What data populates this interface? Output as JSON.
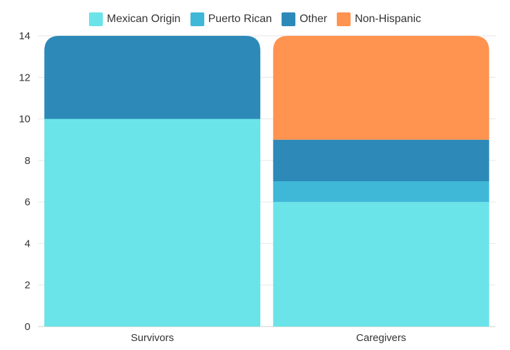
{
  "chart_data": {
    "type": "bar",
    "stacked": true,
    "categories": [
      "Survivors",
      "Caregivers"
    ],
    "series": [
      {
        "name": "Mexican Origin",
        "color": "#6ae4e9",
        "values": [
          10,
          6
        ]
      },
      {
        "name": "Puerto Rican",
        "color": "#3fb8d8",
        "values": [
          0,
          1
        ]
      },
      {
        "name": "Other",
        "color": "#2d8ab8",
        "values": [
          4,
          2
        ]
      },
      {
        "name": "Non-Hispanic",
        "color": "#ff9350",
        "values": [
          0,
          5
        ]
      }
    ],
    "title": "",
    "xlabel": "",
    "ylabel": "",
    "ylim": [
      0,
      14
    ],
    "yticks": [
      0,
      2,
      4,
      6,
      8,
      10,
      12,
      14
    ],
    "grid": true,
    "legend_position": "top-center"
  }
}
